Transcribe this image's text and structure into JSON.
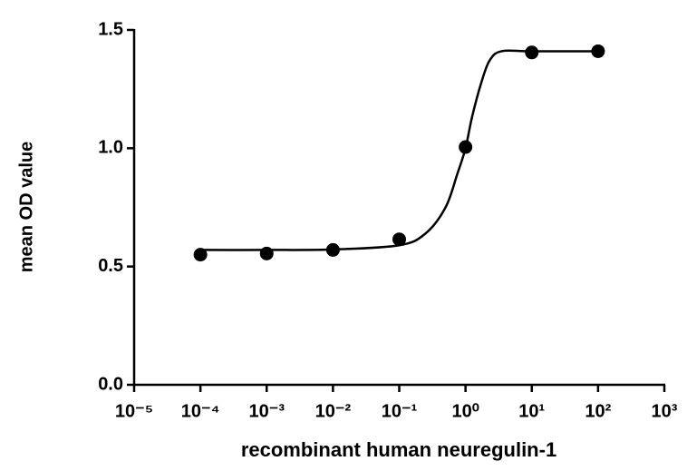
{
  "chart_data": {
    "type": "scatter",
    "x_label": "recombinant human neuregulin-1",
    "y_label": "mean OD value",
    "xscale": "log",
    "xlim": [
      1e-05,
      1000
    ],
    "xticks": [
      {
        "value": 1e-05,
        "label": "10⁻⁵"
      },
      {
        "value": 0.0001,
        "label": "10⁻⁴"
      },
      {
        "value": 0.001,
        "label": "10⁻³"
      },
      {
        "value": 0.01,
        "label": "10⁻²"
      },
      {
        "value": 0.1,
        "label": "10⁻¹"
      },
      {
        "value": 1,
        "label": "10⁰"
      },
      {
        "value": 10,
        "label": "10¹"
      },
      {
        "value": 100,
        "label": "10²"
      },
      {
        "value": 1000,
        "label": "10³"
      }
    ],
    "ylim": [
      0,
      1.5
    ],
    "yticks": [
      {
        "value": 0,
        "label": "0.0"
      },
      0.5,
      {
        "value": 1,
        "label": "1.0"
      },
      1.5
    ],
    "grid": false,
    "series": [
      {
        "style": "markers",
        "color": "#000000",
        "x": [
          0.0001,
          0.001,
          0.01,
          0.1,
          1,
          10,
          100
        ],
        "values": [
          0.55,
          0.555,
          0.57,
          0.615,
          1.005,
          1.405,
          1.41
        ]
      },
      {
        "style": "line",
        "color": "#000000",
        "x": [
          0.0001,
          0.001,
          0.01,
          0.1,
          0.25,
          0.5,
          0.75,
          1,
          1.25,
          1.7,
          2.3,
          3.5,
          10,
          100
        ],
        "values": [
          0.57,
          0.57,
          0.572,
          0.59,
          0.64,
          0.75,
          0.89,
          1.0,
          1.13,
          1.27,
          1.37,
          1.41,
          1.41,
          1.41
        ]
      }
    ]
  }
}
